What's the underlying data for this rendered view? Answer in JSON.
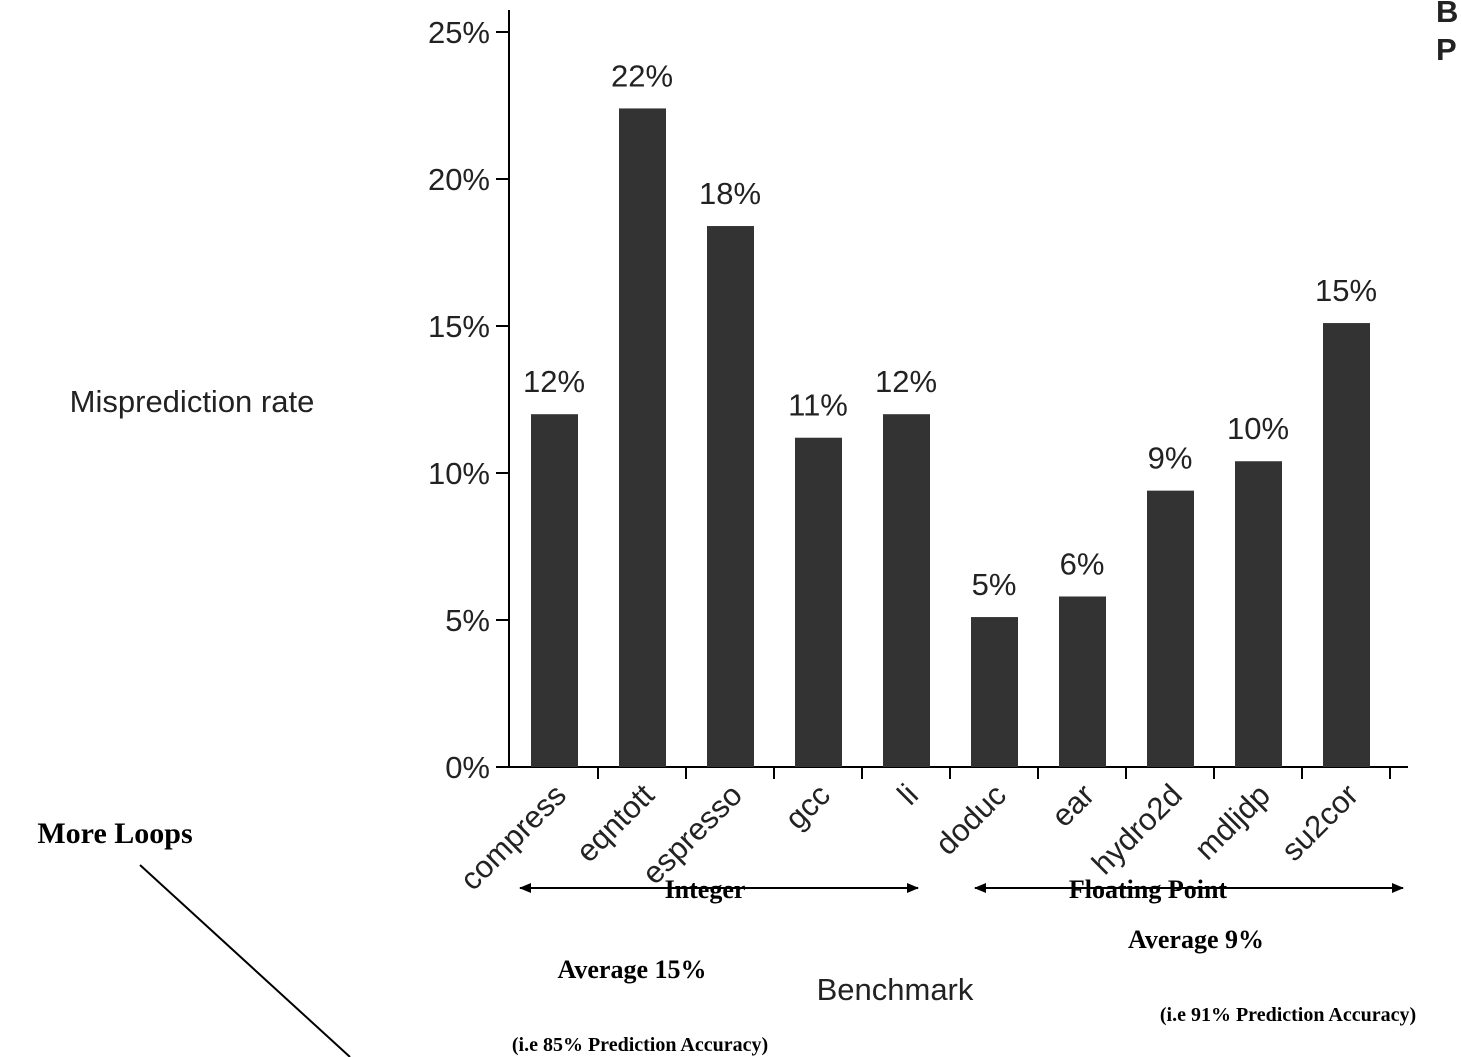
{
  "chart_data": {
    "type": "bar",
    "title_fragments": [
      "B",
      "P"
    ],
    "y_label": "Misprediction rate",
    "x_label": "Benchmark",
    "categories": [
      "compress",
      "eqntott",
      "espresso",
      "gcc",
      "li",
      "doduc",
      "ear",
      "hydro2d",
      "mdljdp",
      "su2cor"
    ],
    "values": [
      12.0,
      22.4,
      18.4,
      11.2,
      12.0,
      5.1,
      5.8,
      9.4,
      10.4,
      15.1
    ],
    "value_labels": [
      "12%",
      "22%",
      "18%",
      "11%",
      "12%",
      "5%",
      "6%",
      "9%",
      "10%",
      "15%"
    ],
    "color": "#333333",
    "ylim": [
      0,
      25
    ],
    "yticks": [
      {
        "value": 0,
        "label": "0%"
      },
      {
        "value": 5,
        "label": "5%"
      },
      {
        "value": 10,
        "label": "10%"
      },
      {
        "value": 15,
        "label": "15%"
      },
      {
        "value": 20,
        "label": "20%"
      },
      {
        "value": 25,
        "label": "25%"
      }
    ],
    "grid": false,
    "annotations": {
      "integer": "Integer",
      "floating": "Floating Point",
      "avg_int": "Average 15%",
      "avg_fp": "Average 9%",
      "acc_int": "(i.e 85% Prediction Accuracy)",
      "acc_fp": "(i.e 91% Prediction Accuracy)",
      "loops": "More Loops"
    }
  }
}
